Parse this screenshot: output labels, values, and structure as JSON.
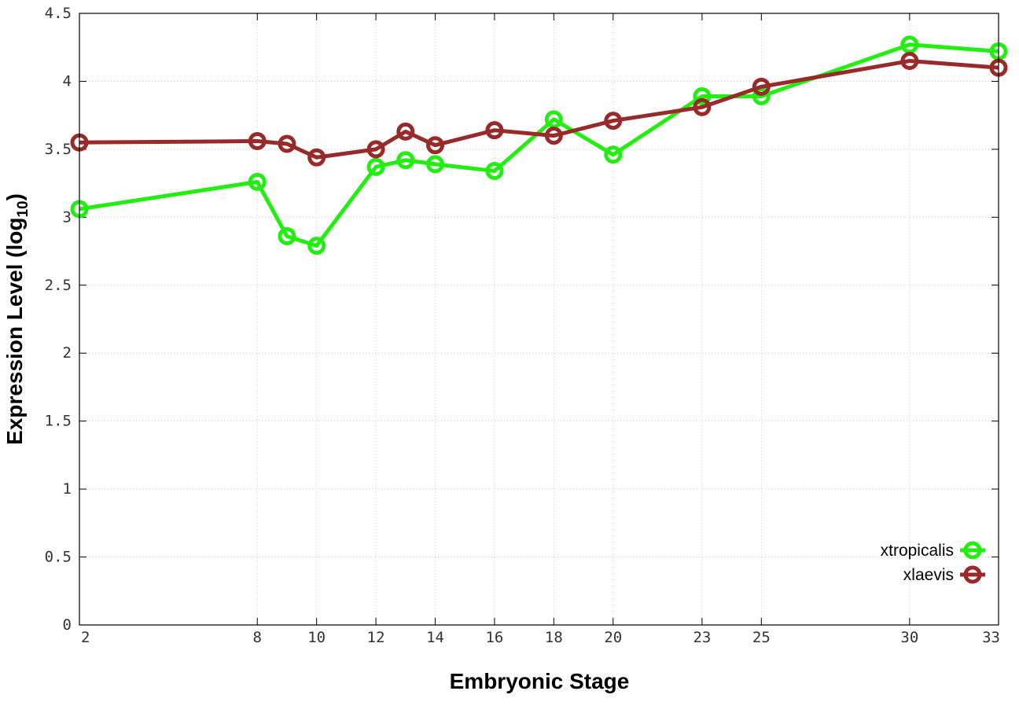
{
  "chart_data": {
    "type": "line",
    "xlabel": "Embryonic Stage",
    "ylabel_main": "Expression Level (log",
    "ylabel_sub": "10",
    "ylabel_close": ")",
    "xlim": [
      2,
      33
    ],
    "ylim": [
      0,
      4.5
    ],
    "x_ticks": [
      2,
      8,
      10,
      12,
      14,
      16,
      18,
      20,
      23,
      25,
      30,
      33
    ],
    "y_ticks": [
      {
        "value": 0,
        "label": "0"
      },
      {
        "value": 0.5,
        "label": "0.5"
      },
      {
        "value": 1,
        "label": "1"
      },
      {
        "value": 1.5,
        "label": "1.5"
      },
      {
        "value": 2,
        "label": "2"
      },
      {
        "value": 2.5,
        "label": "2.5"
      },
      {
        "value": 3,
        "label": "3"
      },
      {
        "value": 3.5,
        "label": "3.5"
      },
      {
        "value": 4,
        "label": "4"
      },
      {
        "value": 4.5,
        "label": "4.5"
      }
    ],
    "grid": true,
    "legend_position": "bottom-right",
    "series": [
      {
        "name": "xtropicalis",
        "color": "#22ee11",
        "points": [
          [
            2,
            3.06
          ],
          [
            8,
            3.26
          ],
          [
            9,
            2.86
          ],
          [
            10,
            2.79
          ],
          [
            12,
            3.37
          ],
          [
            13,
            3.42
          ],
          [
            14,
            3.39
          ],
          [
            16,
            3.34
          ],
          [
            18,
            3.72
          ],
          [
            20,
            3.46
          ],
          [
            23,
            3.89
          ],
          [
            25,
            3.89
          ],
          [
            30,
            4.27
          ],
          [
            33,
            4.22
          ]
        ]
      },
      {
        "name": "xlaevis",
        "color": "#992a2a",
        "points": [
          [
            2,
            3.55
          ],
          [
            8,
            3.56
          ],
          [
            9,
            3.54
          ],
          [
            10,
            3.44
          ],
          [
            12,
            3.5
          ],
          [
            13,
            3.63
          ],
          [
            14,
            3.53
          ],
          [
            16,
            3.64
          ],
          [
            18,
            3.6
          ],
          [
            20,
            3.71
          ],
          [
            23,
            3.81
          ],
          [
            25,
            3.96
          ],
          [
            30,
            4.15
          ],
          [
            33,
            4.1
          ]
        ]
      }
    ]
  }
}
